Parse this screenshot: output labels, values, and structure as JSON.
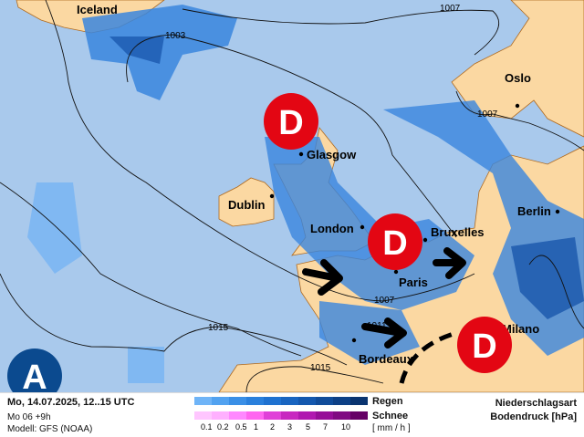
{
  "map": {
    "colors": {
      "sea": "#a9c9ec",
      "land": "#fbd8a2",
      "coast": "#b06a1e",
      "rain_light": "#6fb1f5",
      "rain_mid": "#2f7fe0",
      "rain_dark": "#1451a8",
      "low": "#e30613",
      "high": "#0b4a8f"
    },
    "cities": [
      {
        "name": "Iceland"
      },
      {
        "name": "Oslo"
      },
      {
        "name": "Glasgow"
      },
      {
        "name": "Dublin"
      },
      {
        "name": "London"
      },
      {
        "name": "Bruxelles"
      },
      {
        "name": "Berlin"
      },
      {
        "name": "Paris"
      },
      {
        "name": "Milano"
      },
      {
        "name": "Bordeaux"
      }
    ],
    "isobars": [
      "1007",
      "1003",
      "1007",
      "1007",
      "1015",
      "1015",
      "1011"
    ],
    "low_symbol": "D",
    "high_symbol": "A"
  },
  "legend": {
    "datetime": "Mo, 14.07.2025, 12..15 UTC",
    "run": "Mo 06 +9h",
    "model": "Modell: GFS (NOAA)",
    "rain_label": "Regen",
    "snow_label": "Schnee",
    "unit": "[ mm / h ]",
    "ticks": [
      "0.1",
      "0.2",
      "0.5",
      "1",
      "2",
      "3",
      "5",
      "7",
      "10"
    ],
    "rain_colors": [
      "#6fb4f7",
      "#52a2f0",
      "#3a8fe6",
      "#2a80dc",
      "#1f72d0",
      "#1965c0",
      "#1458ae",
      "#104c9a",
      "#0d4086",
      "#0a3470"
    ],
    "snow_colors": [
      "#ffc6ff",
      "#ffb0ff",
      "#ff88ff",
      "#ff66f0",
      "#e040d8",
      "#c828c0",
      "#b018b0",
      "#960e98",
      "#800a82",
      "#660066"
    ],
    "title1": "Niederschlagsart",
    "title2": "Bodendruck [hPa]"
  }
}
